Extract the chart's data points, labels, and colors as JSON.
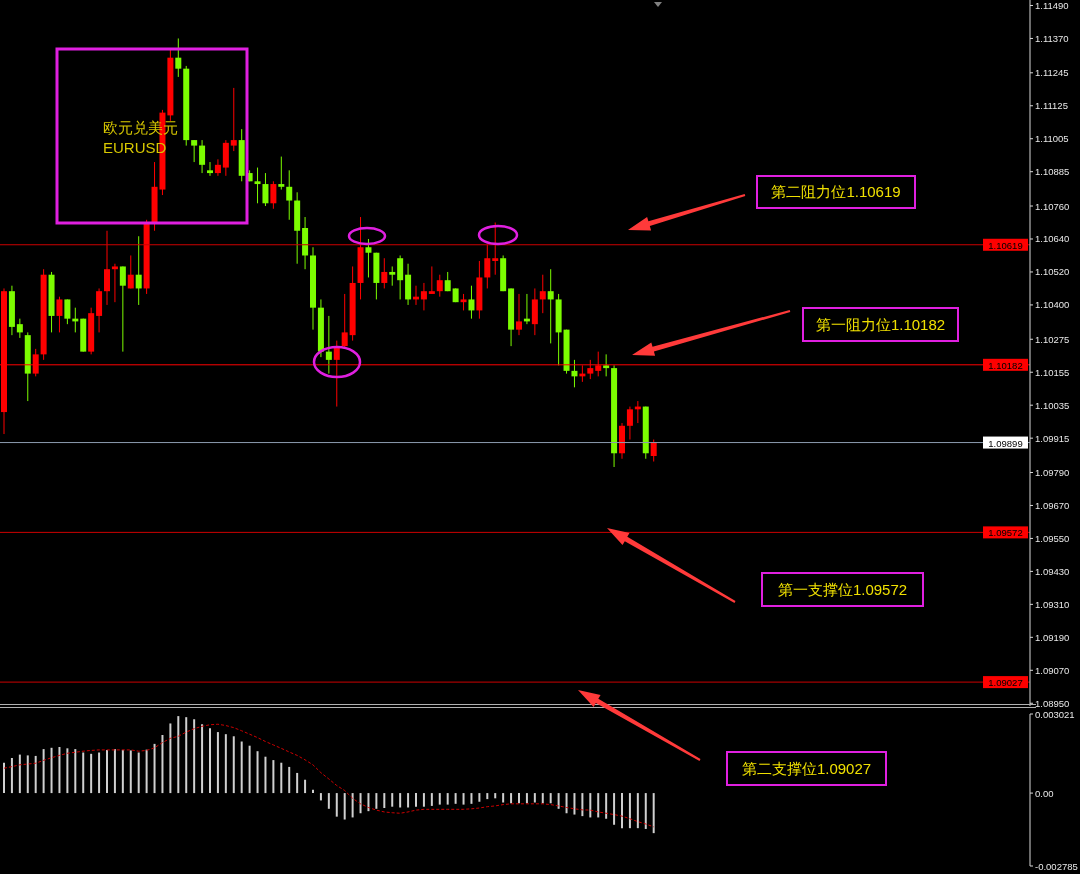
{
  "chart_data": [
    {
      "type": "candlestick",
      "title": "欧元兑美元",
      "subtitle": "EURUSD",
      "categories": [
        null,
        null,
        null,
        null,
        null,
        null,
        null,
        null,
        null,
        null,
        null,
        null,
        null,
        null,
        null,
        null,
        null,
        null,
        null,
        null,
        null,
        null,
        null,
        null,
        null,
        null,
        null,
        null,
        null,
        null,
        null,
        null,
        null,
        null,
        null,
        null,
        null,
        null,
        null,
        null,
        null,
        null,
        null,
        null,
        null,
        null,
        null,
        null,
        null,
        null,
        null,
        null,
        null,
        null,
        null,
        null,
        null,
        null,
        null,
        null,
        null,
        null,
        null,
        null,
        null,
        null,
        null,
        null,
        null,
        null,
        null,
        null,
        null,
        null,
        null,
        null,
        null,
        null,
        null,
        null,
        null,
        null,
        null,
        null,
        null,
        null,
        null,
        null,
        null,
        null,
        null,
        null,
        null,
        null,
        null,
        null,
        null,
        null,
        null,
        null,
        null,
        null,
        null,
        null,
        null,
        null,
        null,
        null,
        null,
        null,
        null,
        null,
        null,
        null,
        null,
        null,
        null,
        null,
        null,
        null,
        null,
        null,
        null,
        null,
        null,
        null,
        null,
        null,
        null,
        null
      ],
      "ohlc": [
        [
          1.1001,
          1.1046,
          1.0993,
          1.1045
        ],
        [
          1.1045,
          1.1047,
          1.1029,
          1.1032
        ],
        [
          1.1033,
          1.1035,
          1.1028,
          1.103
        ],
        [
          1.1029,
          1.103,
          1.1005,
          1.1015
        ],
        [
          1.1015,
          1.1024,
          1.1014,
          1.1022
        ],
        [
          1.1022,
          1.1053,
          1.102,
          1.1051
        ],
        [
          1.1051,
          1.1052,
          1.103,
          1.1036
        ],
        [
          1.1036,
          1.1043,
          1.103,
          1.1042
        ],
        [
          1.1042,
          1.1042,
          1.1033,
          1.1035
        ],
        [
          1.1035,
          1.1039,
          1.103,
          1.1034
        ],
        [
          1.1035,
          1.1035,
          1.1023,
          1.1023
        ],
        [
          1.1023,
          1.1039,
          1.1022,
          1.1037
        ],
        [
          1.1036,
          1.1046,
          1.103,
          1.1045
        ],
        [
          1.1045,
          1.1067,
          1.104,
          1.1053
        ],
        [
          1.1053,
          1.1055,
          1.1041,
          1.1054
        ],
        [
          1.1054,
          1.1054,
          1.1023,
          1.1047
        ],
        [
          1.1046,
          1.1058,
          1.1046,
          1.1051
        ],
        [
          1.1051,
          1.1065,
          1.104,
          1.1046
        ],
        [
          1.1046,
          1.1071,
          1.1044,
          1.107
        ],
        [
          1.107,
          1.1092,
          1.1067,
          1.1083
        ],
        [
          1.1082,
          1.1111,
          1.108,
          1.111
        ],
        [
          1.1109,
          1.1133,
          1.1107,
          1.113
        ],
        [
          1.113,
          1.1137,
          1.1123,
          1.1126
        ],
        [
          1.1126,
          1.1127,
          1.1098,
          1.11
        ],
        [
          1.11,
          1.11,
          1.1092,
          1.1098
        ],
        [
          1.1098,
          1.11,
          1.1088,
          1.1091
        ],
        [
          1.1089,
          1.1092,
          1.1087,
          1.1088
        ],
        [
          1.1088,
          1.1093,
          1.1087,
          1.1091
        ],
        [
          1.109,
          1.11,
          1.1087,
          1.1099
        ],
        [
          1.1098,
          1.1119,
          1.1096,
          1.11
        ],
        [
          1.11,
          1.1104,
          1.1085,
          1.1087
        ],
        [
          1.1088,
          1.1089,
          1.1085,
          1.1085
        ],
        [
          1.1085,
          1.109,
          1.1077,
          1.1084
        ],
        [
          1.1084,
          1.1088,
          1.1076,
          1.1077
        ],
        [
          1.1077,
          1.1085,
          1.1075,
          1.1084
        ],
        [
          1.1084,
          1.1094,
          1.1082,
          1.1083
        ],
        [
          1.1083,
          1.1089,
          1.1071,
          1.1078
        ],
        [
          1.1078,
          1.1081,
          1.1055,
          1.1067
        ],
        [
          1.1068,
          1.1072,
          1.1053,
          1.1058
        ],
        [
          1.1058,
          1.1061,
          1.1031,
          1.1039
        ],
        [
          1.1039,
          1.1042,
          1.1021,
          1.1023
        ],
        [
          1.1023,
          1.1036,
          1.1015,
          1.102
        ],
        [
          1.102,
          1.1027,
          1.1003,
          1.1025
        ],
        [
          1.1025,
          1.1044,
          1.1024,
          1.103
        ],
        [
          1.1029,
          1.1054,
          1.1027,
          1.1048
        ],
        [
          1.1048,
          1.1072,
          1.1042,
          1.1061
        ],
        [
          1.1061,
          1.1064,
          1.105,
          1.1059
        ],
        [
          1.1059,
          1.1059,
          1.1042,
          1.1048
        ],
        [
          1.1048,
          1.1057,
          1.1046,
          1.1052
        ],
        [
          1.1052,
          1.1054,
          1.1047,
          1.1051
        ],
        [
          1.1057,
          1.1058,
          1.1042,
          1.1049
        ],
        [
          1.1051,
          1.1055,
          1.104,
          1.1042
        ],
        [
          1.1042,
          1.1047,
          1.104,
          1.1043
        ],
        [
          1.1042,
          1.1048,
          1.1038,
          1.1045
        ],
        [
          1.1044,
          1.1054,
          1.1044,
          1.1045
        ],
        [
          1.1045,
          1.1051,
          1.1043,
          1.1049
        ],
        [
          1.1049,
          1.1052,
          1.1045,
          1.1045
        ],
        [
          1.1046,
          1.1046,
          1.1041,
          1.1041
        ],
        [
          1.1041,
          1.1044,
          1.1038,
          1.1042
        ],
        [
          1.1042,
          1.1047,
          1.1035,
          1.1038
        ],
        [
          1.1038,
          1.1056,
          1.1035,
          1.105
        ],
        [
          1.105,
          1.1062,
          1.1046,
          1.1057
        ],
        [
          1.1056,
          1.107,
          1.1051,
          1.1057
        ],
        [
          1.1057,
          1.1058,
          1.1045,
          1.1045
        ],
        [
          1.1046,
          1.1046,
          1.1025,
          1.1031
        ],
        [
          1.1031,
          1.1044,
          1.1029,
          1.1034
        ],
        [
          1.1035,
          1.1044,
          1.1033,
          1.1034
        ],
        [
          1.1033,
          1.1046,
          1.1029,
          1.1042
        ],
        [
          1.1042,
          1.1051,
          1.1037,
          1.1045
        ],
        [
          1.1045,
          1.1053,
          1.1026,
          1.1042
        ],
        [
          1.1042,
          1.1044,
          1.1018,
          1.103
        ],
        [
          1.1031,
          1.1031,
          1.1015,
          1.1016
        ],
        [
          1.1016,
          1.102,
          1.101,
          1.1014
        ],
        [
          1.1014,
          1.1018,
          1.1012,
          1.1015
        ],
        [
          1.1015,
          1.102,
          1.1013,
          1.1017
        ],
        [
          1.1016,
          1.1023,
          1.1014,
          1.1018
        ],
        [
          1.1018,
          1.1022,
          1.1014,
          1.1017
        ],
        [
          1.1017,
          1.1018,
          1.0981,
          1.0986
        ],
        [
          1.0986,
          1.0997,
          1.0984,
          1.0996
        ],
        [
          1.0996,
          1.1003,
          1.0991,
          1.1002
        ],
        [
          1.1002,
          1.1005,
          1.0997,
          1.1003
        ],
        [
          1.1003,
          1.1003,
          1.0984,
          1.0986
        ],
        [
          1.0985,
          1.0991,
          1.0983,
          1.099
        ],
        null,
        null,
        null,
        null,
        null,
        null,
        null,
        null,
        null,
        null,
        null,
        null,
        null,
        null,
        null,
        null,
        null,
        null,
        null,
        null,
        null,
        null,
        null,
        null,
        null,
        null,
        null,
        null,
        null,
        null,
        null,
        null,
        null,
        null,
        null,
        null,
        null,
        null,
        null,
        null,
        null,
        null,
        null,
        null,
        null,
        null,
        null
      ],
      "colors": [
        "#ff0000",
        "#7cfc00",
        "#7cfc00",
        "#7cfc00",
        "#ff0000",
        "#ff0000",
        "#7cfc00",
        "#ff0000",
        "#7cfc00",
        "#7cfc00",
        "#7cfc00",
        "#ff0000",
        "#ff0000",
        "#ff0000",
        "#ff0000",
        "#7cfc00",
        "#ff0000",
        "#7cfc00",
        "#ff0000",
        "#ff0000",
        "#ff0000",
        "#ff0000",
        "#7cfc00",
        "#7cfc00",
        "#7cfc00",
        "#7cfc00",
        "#7cfc00",
        "#ff0000",
        "#ff0000",
        "#ff0000",
        "#7cfc00",
        "#7cfc00",
        "#7cfc00",
        "#7cfc00",
        "#ff0000",
        "#7cfc00",
        "#7cfc00",
        "#7cfc00",
        "#7cfc00",
        "#7cfc00",
        "#7cfc00",
        "#7cfc00",
        "#ff0000",
        "#ff0000",
        "#ff0000",
        "#ff0000",
        "#7cfc00",
        "#7cfc00",
        "#ff0000",
        "#7cfc00",
        "#7cfc00",
        "#7cfc00",
        "#ff0000",
        "#ff0000",
        "#ff0000",
        "#ff0000",
        "#7cfc00",
        "#7cfc00",
        "#ff0000",
        "#7cfc00",
        "#ff0000",
        "#ff0000",
        "#ff0000",
        "#7cfc00",
        "#7cfc00",
        "#ff0000",
        "#7cfc00",
        "#ff0000",
        "#ff0000",
        "#7cfc00",
        "#7cfc00",
        "#7cfc00",
        "#7cfc00",
        "#ff0000",
        "#ff0000",
        "#ff0000",
        "#7cfc00",
        "#7cfc00",
        "#ff0000",
        "#ff0000",
        "#ff0000",
        "#7cfc00",
        "#ff0000",
        null,
        null,
        null,
        null,
        null,
        null,
        null,
        null,
        null,
        null,
        null,
        null,
        null,
        null,
        null,
        null,
        null,
        null,
        null,
        null,
        null,
        null,
        null,
        null,
        null,
        null,
        null,
        null,
        null,
        null,
        null,
        null,
        null,
        null,
        null,
        null,
        null,
        null,
        null,
        null,
        null,
        null,
        null,
        null,
        null,
        null,
        null
      ],
      "ylim": [
        1.0894,
        1.1151
      ],
      "yticks": [
        {
          "value": 1.1149,
          "label": "1.11490"
        },
        {
          "value": 1.1137,
          "label": "1.11370"
        },
        1.11245,
        1.11125,
        1.11005,
        1.10885,
        {
          "value": 1.1076,
          "label": "1.10760"
        },
        {
          "value": 1.1064,
          "label": "1.10640"
        },
        {
          "value": 1.1052,
          "label": "1.10520"
        },
        {
          "value": 1.104,
          "label": "1.10400"
        },
        1.10275,
        1.10155,
        1.10035,
        1.09915,
        {
          "value": 1.0979,
          "label": "1.09790"
        },
        {
          "value": 1.0967,
          "label": "1.09670"
        },
        {
          "value": 1.0955,
          "label": "1.09550"
        },
        {
          "value": 1.0943,
          "label": "1.09430"
        },
        {
          "value": 1.0931,
          "label": "1.09310"
        },
        {
          "value": 1.0919,
          "label": "1.09190"
        },
        {
          "value": 1.0907,
          "label": "1.09070"
        },
        {
          "value": 1.0895,
          "label": "1.08950"
        }
      ],
      "ref_lines": [
        {
          "axis": "y",
          "value": 1.10619,
          "label": "1.10619",
          "color": "#cc0000"
        },
        {
          "axis": "y",
          "value": 1.10182,
          "label": "1.10182",
          "color": "#ff0000"
        },
        {
          "axis": "y",
          "value": 1.09899,
          "label": "1.09899",
          "color": "#8c9cb0"
        },
        {
          "axis": "y",
          "value": 1.09572,
          "label": "1.09572",
          "color": "#cc0000"
        },
        {
          "axis": "y",
          "value": 1.09027,
          "label": "1.09027",
          "color": "#cc0000"
        }
      ],
      "annotations": [
        "第二阻力位1.10619",
        "第一阻力位1.10182",
        "第一支撑位1.09572",
        "第二支撑位1.09027"
      ],
      "tick_labels": "y"
    },
    {
      "type": "bar",
      "categories": [
        null,
        null,
        null,
        null,
        null,
        null,
        null,
        null,
        null,
        null,
        null,
        null,
        null,
        null,
        null,
        null,
        null,
        null,
        null,
        null,
        null,
        null,
        null,
        null,
        null,
        null,
        null,
        null,
        null,
        null,
        null,
        null,
        null,
        null,
        null,
        null,
        null,
        null,
        null,
        null,
        null,
        null,
        null,
        null,
        null,
        null,
        null,
        null,
        null,
        null,
        null,
        null,
        null,
        null,
        null,
        null,
        null,
        null,
        null,
        null,
        null,
        null,
        null,
        null,
        null,
        null,
        null,
        null,
        null,
        null,
        null,
        null,
        null,
        null,
        null,
        null,
        null,
        null,
        null,
        null,
        null,
        null,
        null,
        null,
        null,
        null,
        null,
        null,
        null,
        null,
        null,
        null,
        null,
        null,
        null,
        null,
        null,
        null,
        null,
        null,
        null,
        null,
        null,
        null,
        null,
        null,
        null,
        null,
        null,
        null,
        null,
        null,
        null,
        null,
        null,
        null,
        null,
        null,
        null,
        null,
        null,
        null,
        null,
        null,
        null,
        null,
        null,
        null,
        null,
        null
      ],
      "series": [
        {
          "type": "bar",
          "color": "#d0d0d0",
          "values": [
            0.00116,
            0.00134,
            0.00147,
            0.00144,
            0.00142,
            0.00168,
            0.00173,
            0.00176,
            0.00171,
            0.00168,
            0.00155,
            0.0015,
            0.00155,
            0.00165,
            0.00168,
            0.00165,
            0.00163,
            0.00155,
            0.00166,
            0.00188,
            0.00222,
            0.00266,
            0.00294,
            0.0029,
            0.00282,
            0.00263,
            0.00248,
            0.00233,
            0.00225,
            0.00217,
            0.00197,
            0.00181,
            0.0016,
            0.00139,
            0.00126,
            0.00116,
            0.001,
            0.00077,
            0.00051,
            0.00013,
            -0.00028,
            -0.0006,
            -0.0009,
            -0.00101,
            -0.00093,
            -0.00077,
            -0.00069,
            -0.0006,
            -0.00057,
            -0.00052,
            -0.00055,
            -0.00055,
            -0.00052,
            -0.00052,
            -0.00049,
            -0.00044,
            -0.00044,
            -0.00041,
            -0.00044,
            -0.00041,
            -0.00033,
            -0.00023,
            -0.0002,
            -0.00036,
            -0.00039,
            -0.00039,
            -0.00039,
            -0.00036,
            -0.00039,
            -0.00039,
            -0.0006,
            -0.00077,
            -0.00082,
            -0.00088,
            -0.00093,
            -0.00093,
            -0.00098,
            -0.00121,
            -0.00134,
            -0.00134,
            -0.00134,
            -0.00137,
            -0.00153,
            null,
            null,
            null,
            null,
            null,
            null,
            null,
            null,
            null,
            null,
            null,
            null,
            null,
            null,
            null,
            null,
            null,
            null,
            null,
            null,
            null,
            null,
            null,
            null,
            null,
            null,
            null,
            null,
            null,
            null,
            null,
            null,
            null,
            null,
            null,
            null,
            null,
            null,
            null,
            null,
            null,
            null,
            null,
            null,
            null,
            null,
            null
          ]
        },
        {
          "type": "line",
          "color": "#cc0000",
          "line_style": "dashed",
          "values": [
            0.00095,
            0.00101,
            0.00108,
            0.00111,
            0.00114,
            0.00125,
            0.00135,
            0.00144,
            0.00152,
            0.00156,
            0.0016,
            0.00163,
            0.00165,
            0.00165,
            0.00165,
            0.00165,
            0.00165,
            0.0016,
            0.00163,
            0.00173,
            0.00193,
            0.00209,
            0.00217,
            0.00233,
            0.00246,
            0.00255,
            0.00261,
            0.00263,
            0.00258,
            0.0025,
            0.00238,
            0.00225,
            0.00212,
            0.00197,
            0.00184,
            0.00171,
            0.00157,
            0.00144,
            0.00127,
            0.00108,
            0.00078,
            0.00054,
            0.00029,
            0.0001,
            -0.0002,
            -0.00041,
            -0.00055,
            -0.00065,
            -0.00072,
            -0.00075,
            -0.00077,
            -0.00072,
            -0.00065,
            -0.00062,
            -0.00062,
            -0.00062,
            -0.00062,
            -0.00062,
            -0.00062,
            -0.0006,
            -0.00057,
            -0.00052,
            -0.00049,
            -0.00044,
            -0.00041,
            -0.00041,
            -0.00041,
            -0.00041,
            -0.00041,
            -0.00044,
            -0.00049,
            -0.00055,
            -0.0006,
            -0.00064,
            -0.00065,
            -0.00072,
            -0.00077,
            -0.00082,
            -0.00088,
            -0.00098,
            -0.00109,
            -0.00118,
            -0.00129,
            null,
            null,
            null,
            null,
            null,
            null,
            null,
            null,
            null,
            null,
            null,
            null,
            null,
            null,
            null,
            null,
            null,
            null,
            null,
            null,
            null,
            null,
            null,
            null,
            null,
            null,
            null,
            null,
            null,
            null,
            null,
            null,
            null,
            null,
            null,
            null,
            null,
            null,
            null,
            null,
            null,
            null,
            null,
            null,
            null,
            null,
            null
          ]
        }
      ],
      "marker": "none",
      "ylim": [
        -0.002785,
        0.003021
      ],
      "yticks": [
        {
          "value": 0.003021,
          "label": "0.003021"
        },
        {
          "value": 0,
          "label": "0.00"
        },
        {
          "value": -0.002785,
          "label": "-0.002785"
        }
      ],
      "tick_labels": "y"
    }
  ]
}
